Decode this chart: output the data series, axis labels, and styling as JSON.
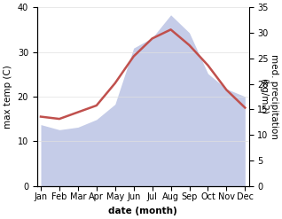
{
  "months": [
    "Jan",
    "Feb",
    "Mar",
    "Apr",
    "May",
    "Jun",
    "Jul",
    "Aug",
    "Sep",
    "Oct",
    "Nov",
    "Dec"
  ],
  "month_indices": [
    0,
    1,
    2,
    3,
    4,
    5,
    6,
    7,
    8,
    9,
    10,
    11
  ],
  "max_temp": [
    15.5,
    15.0,
    16.5,
    18.0,
    23.0,
    29.0,
    33.0,
    35.0,
    31.5,
    27.0,
    21.5,
    17.5
  ],
  "precipitation": [
    12.0,
    11.0,
    11.5,
    13.0,
    16.0,
    27.0,
    29.0,
    33.5,
    30.0,
    22.0,
    19.0,
    17.5
  ],
  "temp_color": "#c0504d",
  "precip_fill_color": "#c5cce8",
  "left_ylim": [
    0,
    40
  ],
  "right_ylim": [
    0,
    35
  ],
  "left_yticks": [
    0,
    10,
    20,
    30,
    40
  ],
  "right_yticks": [
    0,
    5,
    10,
    15,
    20,
    25,
    30,
    35
  ],
  "ylabel_left": "max temp (C)",
  "ylabel_right": "med. precipitation\n(kg/m2)",
  "xlabel": "date (month)",
  "background_color": "#ffffff",
  "line_width": 1.8,
  "font_size_ticks": 7,
  "font_size_axis_label": 7.5
}
